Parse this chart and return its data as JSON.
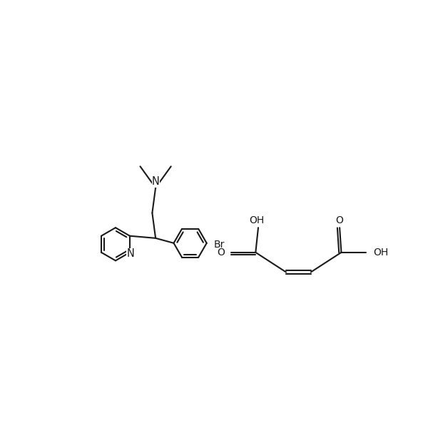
{
  "bg_color": "#ffffff",
  "line_color": "#1a1a1a",
  "line_width": 1.5,
  "font_size": 10,
  "fig_size": [
    6.0,
    6.0
  ],
  "dpi": 100,
  "xlim": [
    0,
    10
  ],
  "ylim": [
    0,
    10
  ]
}
